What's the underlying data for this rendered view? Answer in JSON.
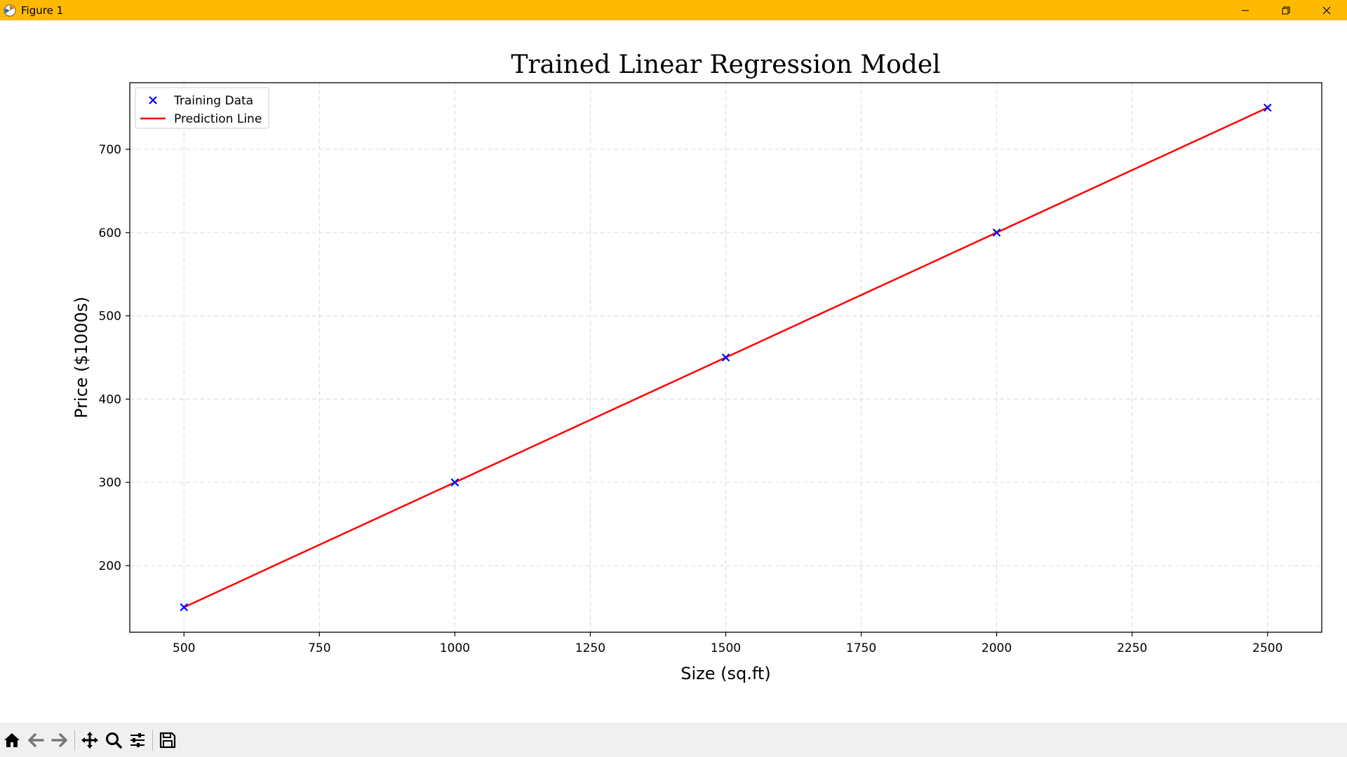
{
  "window": {
    "title": "Figure 1",
    "titlebar_color": "#ffb900",
    "controls": [
      "minimize-icon",
      "restore-icon",
      "close-icon"
    ]
  },
  "toolbar": {
    "buttons": [
      "home-icon",
      "back-arrow-icon",
      "forward-arrow-icon",
      "pan-icon",
      "zoom-icon",
      "configure-subplots-icon",
      "save-icon"
    ]
  },
  "chart_data": {
    "type": "scatter",
    "title": "Trained Linear Regression Model",
    "xlabel": "Size (sq.ft)",
    "ylabel": "Price ($1000s)",
    "xlim": [
      400,
      2600
    ],
    "ylim": [
      120,
      780
    ],
    "xticks": [
      500,
      750,
      1000,
      1250,
      1500,
      1750,
      2000,
      2250,
      2500
    ],
    "yticks": [
      200,
      300,
      400,
      500,
      600,
      700
    ],
    "grid": true,
    "legend_position": "upper-left",
    "series": [
      {
        "name": "Training Data",
        "kind": "scatter",
        "marker": "x",
        "color": "#0000ff",
        "x": [
          500,
          1000,
          1500,
          2000,
          2500
        ],
        "y": [
          150,
          300,
          450,
          600,
          750
        ]
      },
      {
        "name": "Prediction Line",
        "kind": "line",
        "color": "#ff0000",
        "x": [
          500,
          1000,
          1500,
          2000,
          2500
        ],
        "y": [
          150,
          300,
          450,
          600,
          750
        ]
      }
    ]
  }
}
